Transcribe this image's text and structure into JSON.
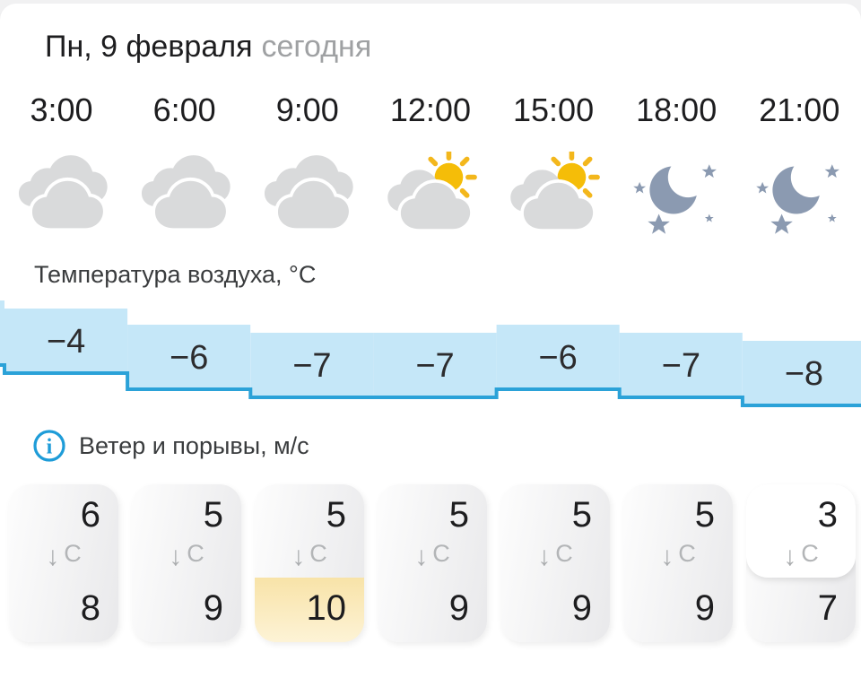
{
  "header": {
    "date": "Пн, 9 февраля",
    "today_label": "сегодня"
  },
  "columns": {
    "times": [
      "3:00",
      "6:00",
      "9:00",
      "12:00",
      "15:00",
      "18:00",
      "21:00"
    ],
    "icons": [
      "cloudy",
      "cloudy",
      "cloudy",
      "partly-sunny",
      "partly-sunny",
      "clear-night",
      "clear-night"
    ]
  },
  "temperature": {
    "label": "Температура воздуха, °C",
    "values": [
      -4,
      -6,
      -7,
      -7,
      -6,
      -7,
      -8
    ],
    "labels": [
      "−4",
      "−6",
      "−7",
      "−7",
      "−6",
      "−7",
      "−8"
    ],
    "prev_offscreen_value": -3
  },
  "wind": {
    "label": "Ветер и порывы, м/с",
    "direction_arrow": "↓",
    "columns": [
      {
        "speed": "6",
        "direction": "С",
        "gust": "8",
        "gust_highlight": false,
        "speed_highlight": false
      },
      {
        "speed": "5",
        "direction": "С",
        "gust": "9",
        "gust_highlight": false,
        "speed_highlight": false
      },
      {
        "speed": "5",
        "direction": "С",
        "gust": "10",
        "gust_highlight": true,
        "speed_highlight": false
      },
      {
        "speed": "5",
        "direction": "С",
        "gust": "9",
        "gust_highlight": false,
        "speed_highlight": false
      },
      {
        "speed": "5",
        "direction": "С",
        "gust": "9",
        "gust_highlight": false,
        "speed_highlight": false
      },
      {
        "speed": "5",
        "direction": "С",
        "gust": "9",
        "gust_highlight": false,
        "speed_highlight": false
      },
      {
        "speed": "3",
        "direction": "С",
        "gust": "7",
        "gust_highlight": false,
        "speed_highlight": true
      }
    ]
  },
  "colors": {
    "background": "#f1f1f2",
    "temp_fill": "#c5e7f8",
    "temp_line": "#2ba2d8",
    "info_blue": "#1e9cd8",
    "cloud_gray": "#d9dadb",
    "sun_yellow": "#f5bd08",
    "moon_gray_blue": "#8b9ab1",
    "gust_highlight_top": "#f8e3a8",
    "gust_highlight_bottom": "#fdf3d6"
  },
  "chart_data": {
    "type": "bar",
    "title": "Температура воздуха, °C",
    "categories": [
      "3:00",
      "6:00",
      "9:00",
      "12:00",
      "15:00",
      "18:00",
      "21:00"
    ],
    "values": [
      -4,
      -6,
      -7,
      -7,
      -6,
      -7,
      -8
    ]
  }
}
